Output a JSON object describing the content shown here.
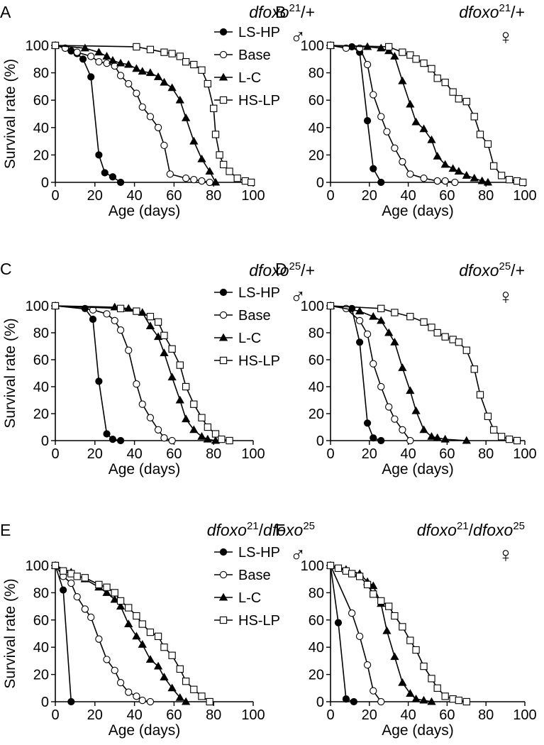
{
  "chart_data": [
    {
      "panel": "A",
      "type": "line",
      "genotype": {
        "base1": "dfoxo",
        "sup1": "21",
        "sep": "/",
        "base2": "+",
        "sup2": ""
      },
      "sex_symbol": "♂",
      "xlabel": "Age (days)",
      "ylabel": "Survival rate (%)",
      "xlim": [
        0,
        100
      ],
      "ylim": [
        0,
        100
      ],
      "xticks": [
        "0",
        "20",
        "40",
        "60",
        "80",
        "100"
      ],
      "yticks": [
        "0",
        "20",
        "40",
        "60",
        "80",
        "100"
      ],
      "legend": {
        "show": true,
        "placement": "top-right"
      },
      "series": [
        {
          "name": "LS-HP",
          "marker": "filled-circle",
          "x": [
            0,
            5,
            8,
            11,
            14,
            18,
            22,
            25,
            29,
            33
          ],
          "y": [
            100,
            98,
            96,
            94,
            90,
            77,
            20,
            7,
            4,
            0
          ]
        },
        {
          "name": "Base",
          "marker": "open-circle",
          "x": [
            0,
            5,
            11,
            18,
            22,
            26,
            30,
            33,
            37,
            41,
            44,
            48,
            52,
            55,
            58,
            66,
            70,
            74,
            78
          ],
          "y": [
            100,
            98,
            95,
            92,
            88,
            87,
            85,
            78,
            72,
            65,
            55,
            48,
            40,
            27,
            6,
            3,
            2,
            1,
            0
          ]
        },
        {
          "name": "L-C",
          "marker": "filled-triangle",
          "x": [
            0,
            15,
            22,
            26,
            29,
            33,
            37,
            41,
            44,
            48,
            52,
            55,
            59,
            63,
            66,
            70,
            74,
            78,
            81
          ],
          "y": [
            100,
            98,
            95,
            92,
            89,
            87,
            86,
            83,
            81,
            80,
            77,
            73,
            69,
            60,
            47,
            30,
            17,
            8,
            0
          ]
        },
        {
          "name": "HS-LP",
          "marker": "open-square",
          "x": [
            0,
            41,
            48,
            55,
            59,
            63,
            66,
            70,
            74,
            77,
            80,
            81,
            83,
            85,
            88,
            92,
            96,
            99
          ],
          "y": [
            100,
            99,
            97,
            95,
            94,
            92,
            88,
            86,
            82,
            72,
            54,
            35,
            20,
            13,
            8,
            3,
            1,
            0
          ]
        }
      ]
    },
    {
      "panel": "B",
      "type": "line",
      "genotype": {
        "base1": "dfoxo",
        "sup1": "21",
        "sep": "/",
        "base2": "+",
        "sup2": ""
      },
      "sex_symbol": "♀",
      "xlabel": "Age (days)",
      "ylabel": "",
      "xlim": [
        0,
        100
      ],
      "ylim": [
        0,
        100
      ],
      "xticks": [
        "0",
        "20",
        "40",
        "60",
        "80",
        "100"
      ],
      "yticks": [
        "0",
        "20",
        "40",
        "60",
        "80",
        "100"
      ],
      "legend": {
        "show": false
      },
      "series": [
        {
          "name": "LS-HP",
          "marker": "filled-circle",
          "x": [
            0,
            11,
            15,
            19,
            22,
            26
          ],
          "y": [
            100,
            99,
            95,
            45,
            10,
            0
          ]
        },
        {
          "name": "Base",
          "marker": "open-circle",
          "x": [
            0,
            8,
            15,
            19,
            22,
            26,
            29,
            33,
            37,
            41,
            48,
            55,
            59,
            64
          ],
          "y": [
            100,
            98,
            98,
            86,
            64,
            48,
            37,
            25,
            15,
            6,
            3,
            1,
            1,
            0
          ]
        },
        {
          "name": "L-C",
          "marker": "filled-triangle",
          "x": [
            0,
            19,
            26,
            30,
            33,
            37,
            41,
            44,
            48,
            52,
            55,
            59,
            63,
            66,
            70,
            74,
            78,
            81
          ],
          "y": [
            100,
            99,
            98,
            96,
            92,
            74,
            57,
            44,
            39,
            31,
            19,
            13,
            10,
            8,
            5,
            3,
            1,
            0
          ]
        },
        {
          "name": "HS-LP",
          "marker": "open-square",
          "x": [
            0,
            30,
            37,
            41,
            44,
            48,
            52,
            55,
            59,
            63,
            66,
            70,
            74,
            77,
            81,
            84,
            88,
            92,
            96,
            99
          ],
          "y": [
            100,
            99,
            95,
            93,
            90,
            87,
            83,
            76,
            73,
            66,
            61,
            59,
            48,
            35,
            28,
            12,
            5,
            2,
            1,
            0
          ]
        }
      ]
    },
    {
      "panel": "C",
      "type": "line",
      "genotype": {
        "base1": "dfoxo",
        "sup1": "25",
        "sep": "/",
        "base2": "+",
        "sup2": ""
      },
      "sex_symbol": "♂",
      "xlabel": "Age (days)",
      "ylabel": "Survival rate (%)",
      "xlim": [
        0,
        100
      ],
      "ylim": [
        0,
        100
      ],
      "xticks": [
        "0",
        "20",
        "40",
        "60",
        "80",
        "100"
      ],
      "yticks": [
        "0",
        "20",
        "40",
        "60",
        "80",
        "100"
      ],
      "legend": {
        "show": true,
        "placement": "top-right"
      },
      "series": [
        {
          "name": "LS-HP",
          "marker": "filled-circle",
          "x": [
            0,
            15,
            19,
            22,
            26,
            29,
            33
          ],
          "y": [
            100,
            98,
            90,
            44,
            5,
            1,
            0
          ]
        },
        {
          "name": "Base",
          "marker": "open-circle",
          "x": [
            0,
            19,
            26,
            30,
            33,
            37,
            41,
            44,
            48,
            52,
            55,
            59
          ],
          "y": [
            100,
            97,
            94,
            89,
            82,
            67,
            42,
            27,
            17,
            8,
            2,
            0
          ]
        },
        {
          "name": "L-C",
          "marker": "filled-triangle",
          "x": [
            0,
            30,
            37,
            44,
            48,
            52,
            55,
            59,
            63,
            66,
            70,
            74,
            77,
            81
          ],
          "y": [
            100,
            99,
            98,
            95,
            85,
            77,
            65,
            47,
            30,
            16,
            8,
            3,
            1,
            0
          ]
        },
        {
          "name": "HS-LP",
          "marker": "open-square",
          "x": [
            0,
            33,
            41,
            48,
            52,
            55,
            59,
            63,
            66,
            70,
            74,
            77,
            81,
            84,
            88
          ],
          "y": [
            100,
            98,
            96,
            92,
            88,
            78,
            68,
            56,
            40,
            27,
            17,
            10,
            5,
            1,
            0
          ]
        }
      ]
    },
    {
      "panel": "D",
      "type": "line",
      "genotype": {
        "base1": "dfoxo",
        "sup1": "25",
        "sep": "/",
        "base2": "+",
        "sup2": ""
      },
      "sex_symbol": "♀",
      "xlabel": "Age (days)",
      "ylabel": "",
      "xlim": [
        0,
        100
      ],
      "ylim": [
        0,
        100
      ],
      "xticks": [
        "0",
        "20",
        "40",
        "60",
        "80",
        "100"
      ],
      "yticks": [
        "0",
        "20",
        "40",
        "60",
        "80",
        "100"
      ],
      "legend": {
        "show": false
      },
      "series": [
        {
          "name": "LS-HP",
          "marker": "filled-circle",
          "x": [
            0,
            11,
            15,
            19,
            22,
            26
          ],
          "y": [
            100,
            98,
            73,
            13,
            2,
            0
          ]
        },
        {
          "name": "Base",
          "marker": "open-circle",
          "x": [
            0,
            8,
            15,
            19,
            22,
            26,
            30,
            33,
            37,
            41
          ],
          "y": [
            100,
            98,
            89,
            79,
            57,
            40,
            25,
            16,
            8,
            0
          ]
        },
        {
          "name": "L-C",
          "marker": "filled-triangle",
          "x": [
            0,
            15,
            22,
            26,
            30,
            33,
            37,
            41,
            44,
            48,
            52,
            55,
            59,
            70
          ],
          "y": [
            100,
            96,
            92,
            89,
            80,
            73,
            54,
            37,
            22,
            8,
            3,
            2,
            1,
            0
          ]
        },
        {
          "name": "HS-LP",
          "marker": "open-square",
          "x": [
            0,
            26,
            33,
            41,
            48,
            52,
            55,
            59,
            63,
            66,
            70,
            74,
            77,
            81,
            84,
            88,
            92,
            96
          ],
          "y": [
            100,
            98,
            95,
            92,
            88,
            84,
            80,
            77,
            75,
            73,
            67,
            53,
            34,
            18,
            8,
            3,
            1,
            0
          ]
        }
      ]
    },
    {
      "panel": "E",
      "type": "line",
      "genotype": {
        "base1": "dfoxo",
        "sup1": "21",
        "sep": "/",
        "base2": "dfoxo",
        "sup2": "25"
      },
      "sex_symbol": "♂",
      "xlabel": "Age (days)",
      "ylabel": "Survival rate (%)",
      "xlim": [
        0,
        100
      ],
      "ylim": [
        0,
        100
      ],
      "xticks": [
        "0",
        "20",
        "40",
        "60",
        "80",
        "100"
      ],
      "yticks": [
        "0",
        "20",
        "40",
        "60",
        "80",
        "100"
      ],
      "legend": {
        "show": true,
        "placement": "top-right"
      },
      "series": [
        {
          "name": "LS-HP",
          "marker": "filled-circle",
          "x": [
            0,
            4,
            8
          ],
          "y": [
            100,
            82,
            0
          ]
        },
        {
          "name": "Base",
          "marker": "open-circle",
          "x": [
            0,
            4,
            8,
            11,
            15,
            18,
            22,
            26,
            30,
            33,
            37,
            41,
            44,
            48
          ],
          "y": [
            100,
            92,
            87,
            77,
            68,
            62,
            46,
            31,
            23,
            14,
            7,
            4,
            1,
            0
          ]
        },
        {
          "name": "L-C",
          "marker": "filled-triangle",
          "x": [
            0,
            8,
            15,
            22,
            26,
            30,
            33,
            37,
            41,
            44,
            48,
            52,
            55,
            59,
            63,
            66
          ],
          "y": [
            100,
            95,
            90,
            84,
            80,
            75,
            70,
            57,
            48,
            42,
            31,
            26,
            18,
            10,
            3,
            0
          ]
        },
        {
          "name": "HS-LP",
          "marker": "open-square",
          "x": [
            0,
            4,
            8,
            11,
            15,
            22,
            26,
            30,
            33,
            37,
            41,
            44,
            48,
            52,
            55,
            59,
            63,
            66,
            70,
            74,
            78
          ],
          "y": [
            100,
            96,
            94,
            92,
            91,
            86,
            84,
            80,
            74,
            69,
            63,
            57,
            51,
            48,
            40,
            34,
            24,
            15,
            9,
            4,
            0
          ]
        }
      ]
    },
    {
      "panel": "F",
      "type": "line",
      "genotype": {
        "base1": "dfoxo",
        "sup1": "21",
        "sep": "/",
        "base2": "dfoxo",
        "sup2": "25"
      },
      "sex_symbol": "♀",
      "xlabel": "Age (days)",
      "ylabel": "",
      "xlim": [
        0,
        100
      ],
      "ylim": [
        0,
        100
      ],
      "xticks": [
        "0",
        "20",
        "40",
        "60",
        "80",
        "100"
      ],
      "yticks": [
        "0",
        "20",
        "40",
        "60",
        "80",
        "100"
      ],
      "legend": {
        "show": false
      },
      "series": [
        {
          "name": "LS-HP",
          "marker": "filled-circle",
          "x": [
            0,
            4,
            8,
            12
          ],
          "y": [
            100,
            58,
            2,
            0
          ]
        },
        {
          "name": "Base",
          "marker": "open-circle",
          "x": [
            0,
            11,
            15,
            19,
            22,
            26
          ],
          "y": [
            100,
            65,
            48,
            27,
            8,
            0
          ]
        },
        {
          "name": "L-C",
          "marker": "filled-triangle",
          "x": [
            0,
            8,
            15,
            19,
            22,
            26,
            29,
            33,
            37,
            41,
            44,
            48,
            52
          ],
          "y": [
            100,
            97,
            94,
            88,
            85,
            72,
            52,
            33,
            14,
            6,
            2,
            1,
            0
          ]
        },
        {
          "name": "HS-LP",
          "marker": "open-square",
          "x": [
            0,
            4,
            8,
            11,
            15,
            19,
            22,
            26,
            30,
            33,
            37,
            41,
            44,
            48,
            52,
            55,
            59,
            63,
            66,
            70
          ],
          "y": [
            100,
            98,
            96,
            94,
            92,
            86,
            79,
            74,
            70,
            63,
            55,
            45,
            38,
            26,
            17,
            10,
            4,
            2,
            1,
            0
          ]
        }
      ]
    }
  ]
}
